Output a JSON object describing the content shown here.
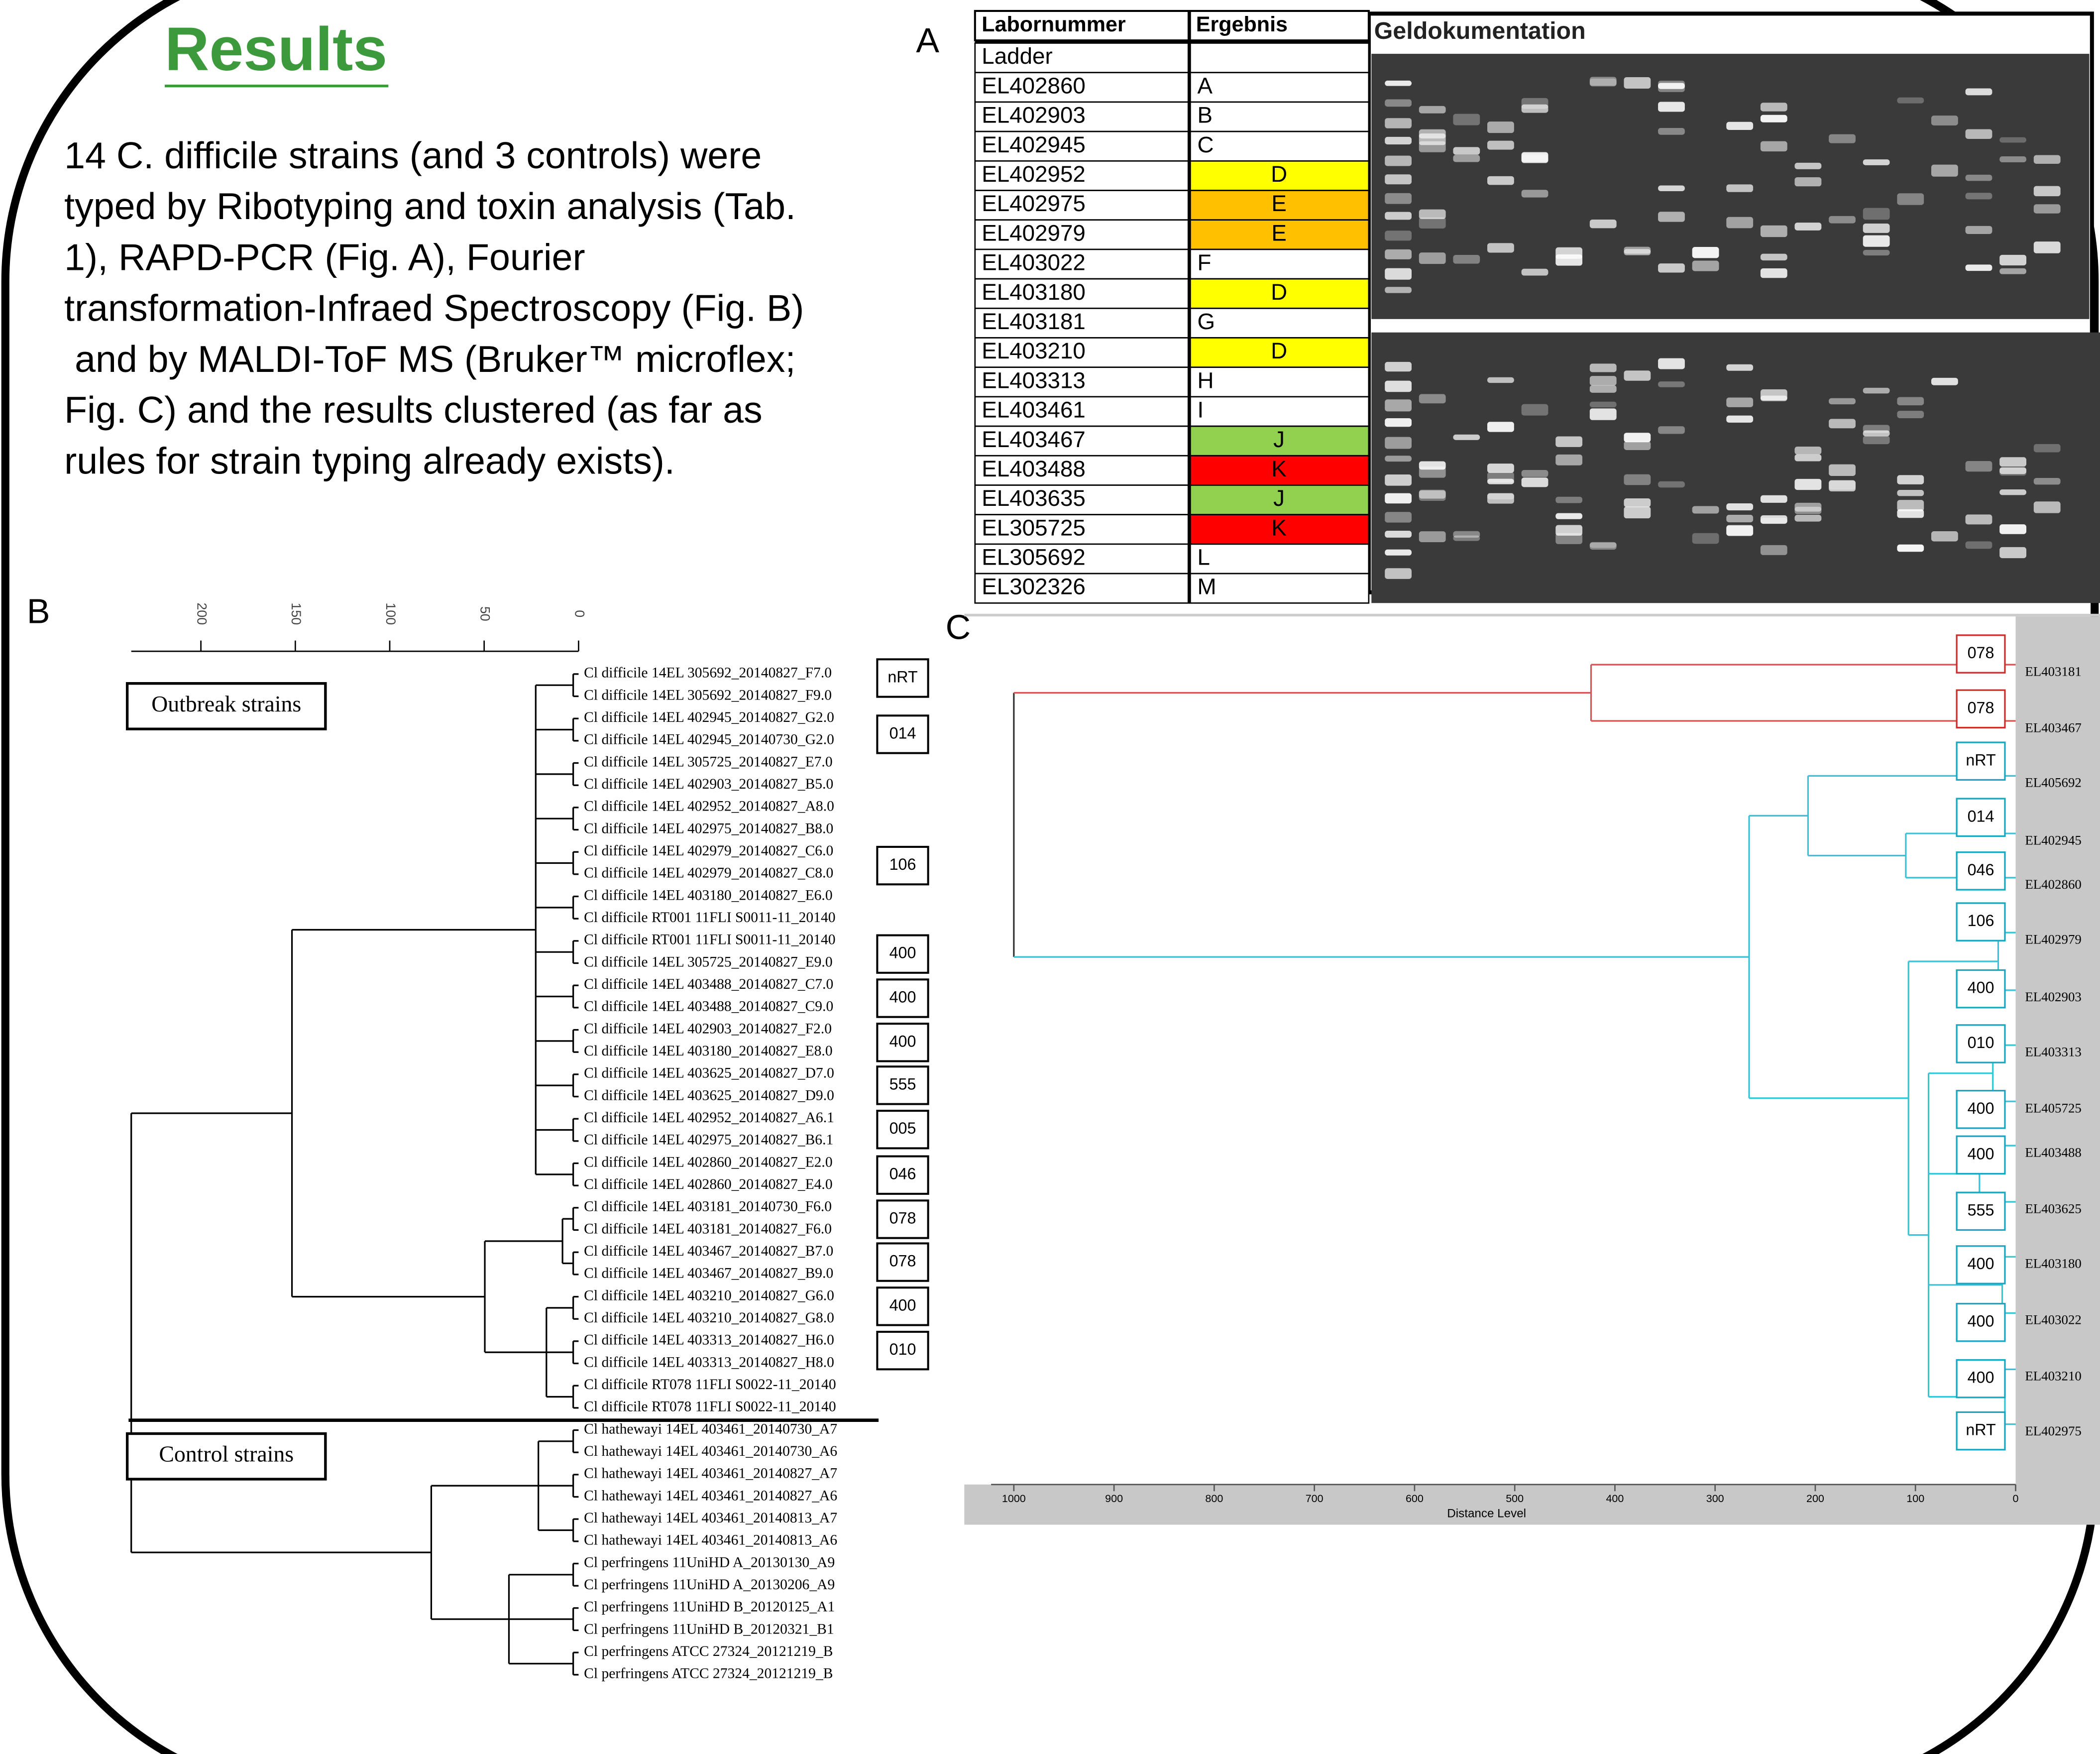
{
  "header": {
    "title": "Results",
    "text": [
      "14 C. difficile strains (and 3 controls) were",
      "typed by Ribotyping and toxin analysis (Tab.",
      "1), RAPD-PCR (Fig. A), Fourier",
      "transformation-Infraed Spectroscopy (Fig. B)",
      " and by MALDI-ToF MS (Bruker™ microflex;",
      "Fig. C) and the results clustered (as far as",
      "rules for strain typing already exists)."
    ]
  },
  "panel_labels": [
    "A",
    "B",
    "C"
  ],
  "table": {
    "headers": [
      "Labornummer",
      "Ergebnis"
    ],
    "rows": [
      {
        "lab": "Ladder"
      },
      {
        "lab": "EL402860",
        "result": "A"
      },
      {
        "lab": "EL402903",
        "result": "B"
      },
      {
        "lab": "EL402945",
        "result": "C"
      },
      {
        "lab": "EL402952",
        "result": "D",
        "color": "#ffff00"
      },
      {
        "lab": "EL402975",
        "result": "E",
        "color": "#ffc000"
      },
      {
        "lab": "EL402979",
        "result": "E",
        "color": "#ffc000"
      },
      {
        "lab": "EL403022",
        "result": "F"
      },
      {
        "lab": "EL403180",
        "result": "D",
        "color": "#ffff00"
      },
      {
        "lab": "EL403181",
        "result": "G"
      },
      {
        "lab": "EL403210",
        "result": "D",
        "color": "#ffff00"
      },
      {
        "lab": "EL403313",
        "result": "H"
      },
      {
        "lab": "EL403461",
        "result": "I"
      },
      {
        "lab": "EL403467",
        "result": "J",
        "color": "#92d050"
      },
      {
        "lab": "EL403488",
        "result": "K",
        "color": "#ff0000"
      },
      {
        "lab": "EL403635",
        "result": "J",
        "color": "#92d050"
      },
      {
        "lab": "EL305725",
        "result": "K",
        "color": "#ff0000"
      },
      {
        "lab": "EL305692",
        "result": "L"
      },
      {
        "lab": "EL302326",
        "result": "M"
      }
    ]
  },
  "gel_title": "Geldokumentation",
  "dendrogram_b": {
    "scale": [
      "200",
      "150",
      "100",
      "50",
      "0"
    ],
    "groups": [
      "Outbreak strains",
      "Control strains"
    ],
    "leaves": [
      "Cl difficile 14EL 305692_20140827_F7.0",
      "Cl difficile 14EL 305692_20140827_F9.0",
      "Cl difficile 14EL 402945_20140827_G2.0",
      "Cl difficile 14EL 402945_20140730_G2.0",
      "Cl difficile 14EL 305725_20140827_E7.0",
      "Cl difficile 14EL 402903_20140827_B5.0",
      "Cl difficile 14EL 402952_20140827_A8.0",
      "Cl difficile 14EL 402975_20140827_B8.0",
      "Cl difficile 14EL 402979_20140827_C6.0",
      "Cl difficile 14EL 402979_20140827_C8.0",
      "Cl difficile 14EL 403180_20140827_E6.0",
      "Cl difficile RT001 11FLI S0011-11_20140",
      "Cl difficile RT001 11FLI S0011-11_20140",
      "Cl difficile 14EL 305725_20140827_E9.0",
      "Cl difficile 14EL 403488_20140827_C7.0",
      "Cl difficile 14EL 403488_20140827_C9.0",
      "Cl difficile 14EL 402903_20140827_F2.0",
      "Cl difficile 14EL 403180_20140827_E8.0",
      "Cl difficile 14EL 403625_20140827_D7.0",
      "Cl difficile 14EL 403625_20140827_D9.0",
      "Cl difficile 14EL 402952_20140827_A6.1",
      "Cl difficile 14EL 402975_20140827_B6.1",
      "Cl difficile 14EL 402860_20140827_E2.0",
      "Cl difficile 14EL 402860_20140827_E4.0",
      "Cl difficile 14EL 403181_20140730_F6.0",
      "Cl difficile 14EL 403181_20140827_F6.0",
      "Cl difficile 14EL 403467_20140827_B7.0",
      "Cl difficile 14EL 403467_20140827_B9.0",
      "Cl difficile 14EL 403210_20140827_G6.0",
      "Cl difficile 14EL 403210_20140827_G8.0",
      "Cl difficile 14EL 403313_20140827_H6.0",
      "Cl difficile 14EL 403313_20140827_H8.0",
      "Cl difficile RT078 11FLI S0022-11_20140",
      "Cl difficile RT078 11FLI S0022-11_20140",
      "Cl hathewayi 14EL 403461_20140730_A7",
      "Cl hathewayi 14EL 403461_20140730_A6",
      "Cl hathewayi 14EL 403461_20140827_A7",
      "Cl hathewayi 14EL 403461_20140827_A6",
      "Cl hathewayi 14EL 403461_20140813_A7",
      "Cl hathewayi 14EL 403461_20140813_A6",
      "Cl perfringens 11UniHD A_20130130_A9",
      "Cl perfringens 11UniHD A_20130206_A9",
      "Cl perfringens 11UniHD B_20120125_A1",
      "Cl perfringens 11UniHD B_20120321_B1",
      "Cl perfringens ATCC 27324_20121219_B",
      "Cl perfringens ATCC 27324_20121219_B"
    ],
    "ribotypes": [
      "nRT",
      "014",
      "106",
      "400",
      "400",
      "400",
      "555",
      "005",
      "046",
      "078",
      "078",
      "400",
      "010"
    ]
  },
  "dendrogram_c": {
    "ribotypes": [
      "078",
      "078",
      "nRT",
      "014",
      "046",
      "106",
      "400",
      "010",
      "400",
      "400",
      "555",
      "400",
      "400",
      "400",
      "nRT"
    ],
    "strains": [
      "EL403181",
      "EL403467",
      "EL405692",
      "EL402945",
      "EL402860",
      "EL402979",
      "EL402903",
      "EL403313",
      "EL405725",
      "EL403488",
      "EL403625",
      "EL403180",
      "EL403022",
      "EL403210",
      "EL402975"
    ],
    "axis_ticks": [
      "1000",
      "900",
      "800",
      "700",
      "600",
      "500",
      "400",
      "300",
      "200",
      "100",
      "0"
    ],
    "axis_label": "Distance Level"
  }
}
